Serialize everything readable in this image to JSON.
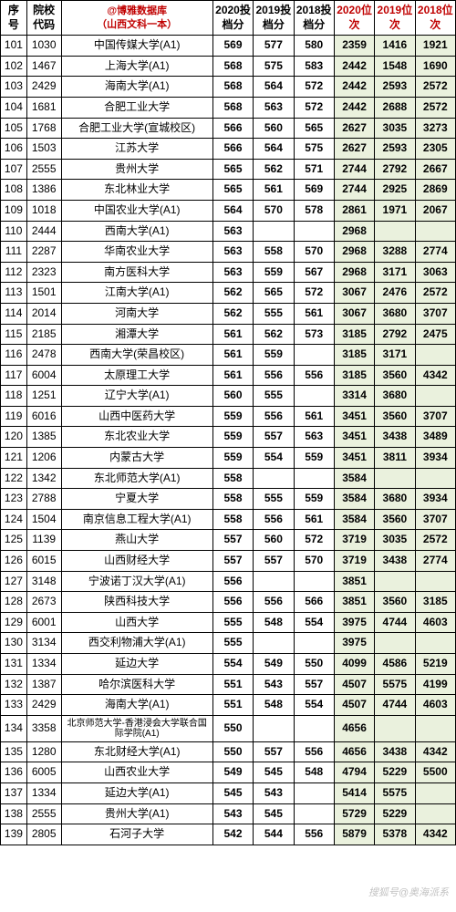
{
  "headers": {
    "seq": "序号",
    "code": "院校代码",
    "db_line1": "@博雅数据库",
    "db_line2": "（山西文科一本）",
    "score2020": "2020投档分",
    "score2019": "2019投档分",
    "score2018": "2018投档分",
    "rank2020": "2020位次",
    "rank2019": "2019位次",
    "rank2018": "2018位次"
  },
  "styling": {
    "border_color": "#000000",
    "rank_bg": "#eaf1dd",
    "header_red": "#c00000",
    "font_family": "Microsoft YaHei",
    "base_font_size": 12,
    "score_font_weight": "bold",
    "rank_font_weight": "bold"
  },
  "watermark": "搜狐号@奥海派系",
  "rows": [
    {
      "seq": "101",
      "code": "1030",
      "name": "中国传媒大学(A1)",
      "s20": "569",
      "s19": "577",
      "s18": "580",
      "r20": "2359",
      "r19": "1416",
      "r18": "1921"
    },
    {
      "seq": "102",
      "code": "1467",
      "name": "上海大学(A1)",
      "s20": "568",
      "s19": "575",
      "s18": "583",
      "r20": "2442",
      "r19": "1548",
      "r18": "1690"
    },
    {
      "seq": "103",
      "code": "2429",
      "name": "海南大学(A1)",
      "s20": "568",
      "s19": "564",
      "s18": "572",
      "r20": "2442",
      "r19": "2593",
      "r18": "2572"
    },
    {
      "seq": "104",
      "code": "1681",
      "name": "合肥工业大学",
      "s20": "568",
      "s19": "563",
      "s18": "572",
      "r20": "2442",
      "r19": "2688",
      "r18": "2572"
    },
    {
      "seq": "105",
      "code": "1768",
      "name": "合肥工业大学(宣城校区)",
      "s20": "566",
      "s19": "560",
      "s18": "565",
      "r20": "2627",
      "r19": "3035",
      "r18": "3273"
    },
    {
      "seq": "106",
      "code": "1503",
      "name": "江苏大学",
      "s20": "566",
      "s19": "564",
      "s18": "575",
      "r20": "2627",
      "r19": "2593",
      "r18": "2305"
    },
    {
      "seq": "107",
      "code": "2555",
      "name": "贵州大学",
      "s20": "565",
      "s19": "562",
      "s18": "571",
      "r20": "2744",
      "r19": "2792",
      "r18": "2667"
    },
    {
      "seq": "108",
      "code": "1386",
      "name": "东北林业大学",
      "s20": "565",
      "s19": "561",
      "s18": "569",
      "r20": "2744",
      "r19": "2925",
      "r18": "2869"
    },
    {
      "seq": "109",
      "code": "1018",
      "name": "中国农业大学(A1)",
      "s20": "564",
      "s19": "570",
      "s18": "578",
      "r20": "2861",
      "r19": "1971",
      "r18": "2067"
    },
    {
      "seq": "110",
      "code": "2444",
      "name": "西南大学(A1)",
      "s20": "563",
      "s19": "",
      "s18": "",
      "r20": "2968",
      "r19": "",
      "r18": ""
    },
    {
      "seq": "111",
      "code": "2287",
      "name": "华南农业大学",
      "s20": "563",
      "s19": "558",
      "s18": "570",
      "r20": "2968",
      "r19": "3288",
      "r18": "2774"
    },
    {
      "seq": "112",
      "code": "2323",
      "name": "南方医科大学",
      "s20": "563",
      "s19": "559",
      "s18": "567",
      "r20": "2968",
      "r19": "3171",
      "r18": "3063"
    },
    {
      "seq": "113",
      "code": "1501",
      "name": "江南大学(A1)",
      "s20": "562",
      "s19": "565",
      "s18": "572",
      "r20": "3067",
      "r19": "2476",
      "r18": "2572"
    },
    {
      "seq": "114",
      "code": "2014",
      "name": "河南大学",
      "s20": "562",
      "s19": "555",
      "s18": "561",
      "r20": "3067",
      "r19": "3680",
      "r18": "3707"
    },
    {
      "seq": "115",
      "code": "2185",
      "name": "湘潭大学",
      "s20": "561",
      "s19": "562",
      "s18": "573",
      "r20": "3185",
      "r19": "2792",
      "r18": "2475"
    },
    {
      "seq": "116",
      "code": "2478",
      "name": "西南大学(荣昌校区)",
      "s20": "561",
      "s19": "559",
      "s18": "",
      "r20": "3185",
      "r19": "3171",
      "r18": ""
    },
    {
      "seq": "117",
      "code": "6004",
      "name": "太原理工大学",
      "s20": "561",
      "s19": "556",
      "s18": "556",
      "r20": "3185",
      "r19": "3560",
      "r18": "4342"
    },
    {
      "seq": "118",
      "code": "1251",
      "name": "辽宁大学(A1)",
      "s20": "560",
      "s19": "555",
      "s18": "",
      "r20": "3314",
      "r19": "3680",
      "r18": ""
    },
    {
      "seq": "119",
      "code": "6016",
      "name": "山西中医药大学",
      "s20": "559",
      "s19": "556",
      "s18": "561",
      "r20": "3451",
      "r19": "3560",
      "r18": "3707"
    },
    {
      "seq": "120",
      "code": "1385",
      "name": "东北农业大学",
      "s20": "559",
      "s19": "557",
      "s18": "563",
      "r20": "3451",
      "r19": "3438",
      "r18": "3489"
    },
    {
      "seq": "121",
      "code": "1206",
      "name": "内蒙古大学",
      "s20": "559",
      "s19": "554",
      "s18": "559",
      "r20": "3451",
      "r19": "3811",
      "r18": "3934"
    },
    {
      "seq": "122",
      "code": "1342",
      "name": "东北师范大学(A1)",
      "s20": "558",
      "s19": "",
      "s18": "",
      "r20": "3584",
      "r19": "",
      "r18": ""
    },
    {
      "seq": "123",
      "code": "2788",
      "name": "宁夏大学",
      "s20": "558",
      "s19": "555",
      "s18": "559",
      "r20": "3584",
      "r19": "3680",
      "r18": "3934"
    },
    {
      "seq": "124",
      "code": "1504",
      "name": "南京信息工程大学(A1)",
      "s20": "558",
      "s19": "556",
      "s18": "561",
      "r20": "3584",
      "r19": "3560",
      "r18": "3707"
    },
    {
      "seq": "125",
      "code": "1139",
      "name": "燕山大学",
      "s20": "557",
      "s19": "560",
      "s18": "572",
      "r20": "3719",
      "r19": "3035",
      "r18": "2572"
    },
    {
      "seq": "126",
      "code": "6015",
      "name": "山西财经大学",
      "s20": "557",
      "s19": "557",
      "s18": "570",
      "r20": "3719",
      "r19": "3438",
      "r18": "2774"
    },
    {
      "seq": "127",
      "code": "3148",
      "name": "宁波诺丁汉大学(A1)",
      "s20": "556",
      "s19": "",
      "s18": "",
      "r20": "3851",
      "r19": "",
      "r18": ""
    },
    {
      "seq": "128",
      "code": "2673",
      "name": "陕西科技大学",
      "s20": "556",
      "s19": "556",
      "s18": "566",
      "r20": "3851",
      "r19": "3560",
      "r18": "3185"
    },
    {
      "seq": "129",
      "code": "6001",
      "name": "山西大学",
      "s20": "555",
      "s19": "548",
      "s18": "554",
      "r20": "3975",
      "r19": "4744",
      "r18": "4603"
    },
    {
      "seq": "130",
      "code": "3134",
      "name": "西交利物浦大学(A1)",
      "s20": "555",
      "s19": "",
      "s18": "",
      "r20": "3975",
      "r19": "",
      "r18": ""
    },
    {
      "seq": "131",
      "code": "1334",
      "name": "延边大学",
      "s20": "554",
      "s19": "549",
      "s18": "550",
      "r20": "4099",
      "r19": "4586",
      "r18": "5219"
    },
    {
      "seq": "132",
      "code": "1387",
      "name": "哈尔滨医科大学",
      "s20": "551",
      "s19": "543",
      "s18": "557",
      "r20": "4507",
      "r19": "5575",
      "r18": "4199"
    },
    {
      "seq": "133",
      "code": "2429",
      "name": "海南大学(A1)",
      "s20": "551",
      "s19": "548",
      "s18": "554",
      "r20": "4507",
      "r19": "4744",
      "r18": "4603"
    },
    {
      "seq": "134",
      "code": "3358",
      "name": "北京师范大学-香港浸会大学联合国际学院(A1)",
      "s20": "550",
      "s19": "",
      "s18": "",
      "r20": "4656",
      "r19": "",
      "r18": "",
      "small": true
    },
    {
      "seq": "135",
      "code": "1280",
      "name": "东北财经大学(A1)",
      "s20": "550",
      "s19": "557",
      "s18": "556",
      "r20": "4656",
      "r19": "3438",
      "r18": "4342"
    },
    {
      "seq": "136",
      "code": "6005",
      "name": "山西农业大学",
      "s20": "549",
      "s19": "545",
      "s18": "548",
      "r20": "4794",
      "r19": "5229",
      "r18": "5500"
    },
    {
      "seq": "137",
      "code": "1334",
      "name": "延边大学(A1)",
      "s20": "545",
      "s19": "543",
      "s18": "",
      "r20": "5414",
      "r19": "5575",
      "r18": ""
    },
    {
      "seq": "138",
      "code": "2555",
      "name": "贵州大学(A1)",
      "s20": "543",
      "s19": "545",
      "s18": "",
      "r20": "5729",
      "r19": "5229",
      "r18": ""
    },
    {
      "seq": "139",
      "code": "2805",
      "name": "石河子大学",
      "s20": "542",
      "s19": "544",
      "s18": "556",
      "r20": "5879",
      "r19": "5378",
      "r18": "4342"
    }
  ]
}
